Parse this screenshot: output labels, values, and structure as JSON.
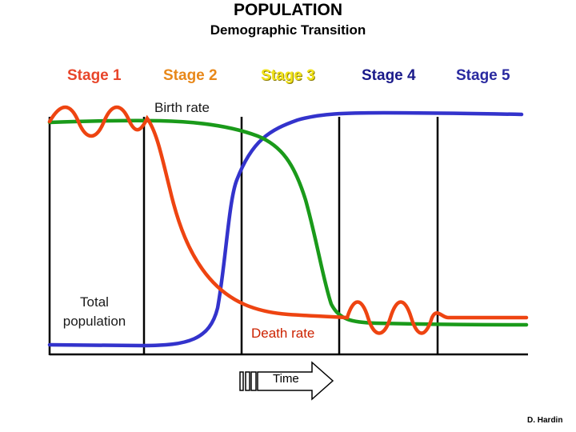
{
  "title": "POPULATION",
  "subtitle": "Demographic Transition",
  "stages": [
    "Stage 1",
    "Stage 2",
    "Stage 3",
    "Stage 4",
    "Stage 5"
  ],
  "labels": {
    "birth_rate": "Birth rate",
    "death_rate": "Death rate",
    "total_population": "Total population",
    "time": "Time"
  },
  "credit": "D. Hardin",
  "colors": {
    "birth_rate": "#1a9a1a",
    "death_rate": "#ee4411",
    "total_population": "#3333cc",
    "stage_1": "#e8452a",
    "stage_2": "#e8881a",
    "stage_3": "#f2e41a",
    "stage_4": "#1a1a8a",
    "stage_5": "#2a2aa0"
  }
}
